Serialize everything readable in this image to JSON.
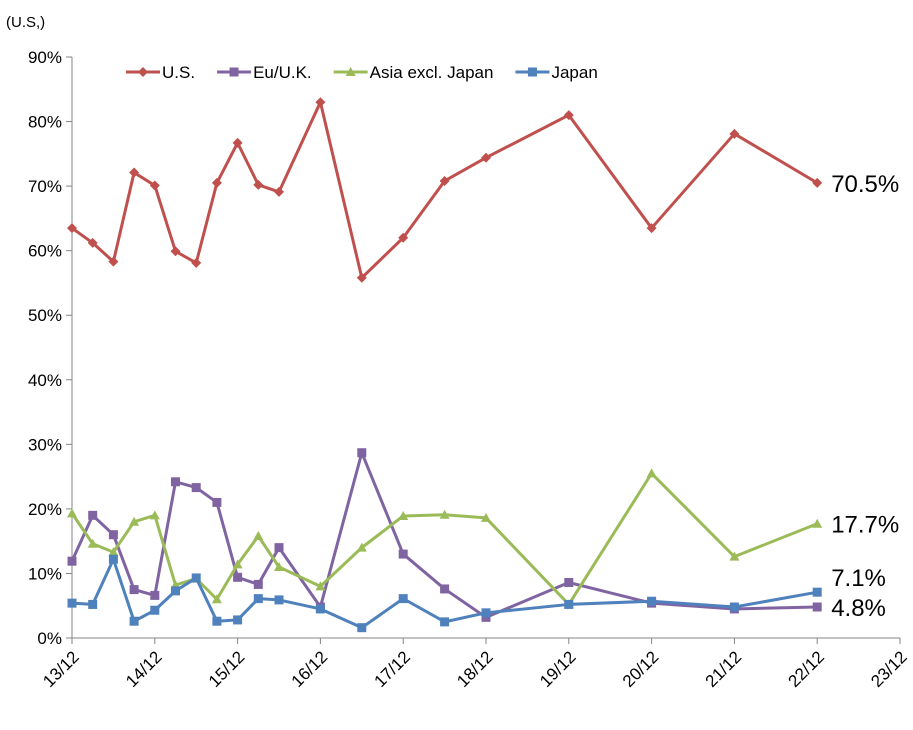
{
  "chart_data": {
    "type": "line",
    "y_label": "(U.S,)",
    "x": [
      "13/12",
      "14/3",
      "14/6",
      "14/9",
      "14/12",
      "15/3",
      "15/6",
      "15/9",
      "15/12",
      "16/3",
      "16/6",
      "16/12",
      "17/6",
      "17/12",
      "18/6",
      "18/12",
      "19/12",
      "20/12",
      "21/12",
      "22/12"
    ],
    "xlim": [
      "13/12",
      "23/12"
    ],
    "xticks": [
      "13/12",
      "14/12",
      "15/12",
      "16/12",
      "17/12",
      "18/12",
      "19/12",
      "20/12",
      "21/12",
      "22/12",
      "23/12"
    ],
    "ylim": [
      0,
      90
    ],
    "yticks": [
      {
        "value": 0,
        "label": "0%"
      },
      {
        "value": 10,
        "label": "10%"
      },
      {
        "value": 20,
        "label": "20%"
      },
      {
        "value": 30,
        "label": "30%"
      },
      {
        "value": 40,
        "label": "40%"
      },
      {
        "value": 50,
        "label": "50%"
      },
      {
        "value": 60,
        "label": "60%"
      },
      {
        "value": 70,
        "label": "70%"
      },
      {
        "value": 80,
        "label": "80%"
      },
      {
        "value": 90,
        "label": "90%"
      }
    ],
    "grid": false,
    "legend": "top-left",
    "series": [
      {
        "name": "U.S.",
        "color": "#c0504d",
        "marker": "diamond",
        "values": [
          63.5,
          61.2,
          58.3,
          72.1,
          70.1,
          59.9,
          58.1,
          70.5,
          76.7,
          70.2,
          69.1,
          83.0,
          55.8,
          62.0,
          70.8,
          74.4,
          81.0,
          63.5,
          78.1,
          70.5
        ],
        "value_labels": [
          null,
          null,
          null,
          null,
          null,
          null,
          null,
          null,
          null,
          null,
          null,
          null,
          null,
          null,
          null,
          null,
          null,
          null,
          null,
          "70.5%"
        ]
      },
      {
        "name": "Eu/U.K.",
        "color": "#8064a2",
        "marker": "square",
        "values": [
          11.9,
          19.0,
          16.0,
          7.5,
          6.6,
          24.2,
          23.3,
          21.0,
          9.4,
          8.3,
          14.0,
          4.8,
          28.7,
          13.0,
          7.6,
          3.2,
          8.6,
          5.4,
          4.5,
          4.8
        ],
        "value_labels": [
          null,
          null,
          null,
          null,
          null,
          null,
          null,
          null,
          null,
          null,
          null,
          null,
          null,
          null,
          null,
          null,
          null,
          null,
          null,
          "4.8%"
        ]
      },
      {
        "name": "Asia excl. Japan",
        "color": "#9bbb59",
        "marker": "triangle",
        "values": [
          19.3,
          14.6,
          13.3,
          18.0,
          19.0,
          8.2,
          9.2,
          6.0,
          11.4,
          15.8,
          11.0,
          8.0,
          14.0,
          18.9,
          19.1,
          18.6,
          5.2,
          25.5,
          12.6,
          17.7
        ],
        "value_labels": [
          null,
          null,
          null,
          null,
          null,
          null,
          null,
          null,
          null,
          null,
          null,
          null,
          null,
          null,
          null,
          null,
          null,
          null,
          null,
          "17.7%"
        ]
      },
      {
        "name": "Japan",
        "color": "#4f81bd",
        "marker": "square",
        "values": [
          5.4,
          5.2,
          12.2,
          2.6,
          4.3,
          7.3,
          9.3,
          2.6,
          2.8,
          6.1,
          5.9,
          4.5,
          1.6,
          6.1,
          2.5,
          3.9,
          5.2,
          5.7,
          4.8,
          7.1
        ],
        "value_labels": [
          null,
          null,
          null,
          null,
          null,
          null,
          null,
          null,
          null,
          null,
          null,
          null,
          null,
          null,
          null,
          null,
          null,
          null,
          null,
          "7.1%"
        ]
      }
    ]
  }
}
